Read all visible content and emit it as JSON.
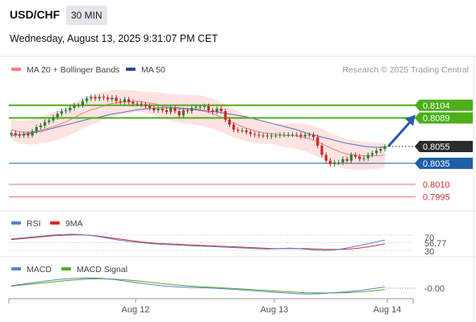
{
  "header": {
    "symbol": "USD/CHF",
    "timeframe": "30 MIN",
    "datetime": "Wednesday, August 13, 2025 9:31:07 PM CET"
  },
  "legend": {
    "ma20_bb": "MA 20 + Bollinger Bands",
    "ma50": "MA 50",
    "credit": "Research © 2025 Trading Central"
  },
  "colors": {
    "bullish": "#2e7d32",
    "bearish": "#c62828",
    "bollinger_fill": "#fde3e1",
    "ma20": "#f08080",
    "ma50": "#5b6fc4",
    "resistance": "#4caf1a",
    "pivot": "#1d5fa8",
    "support": "#e57373",
    "arrow": "#2a5aa8",
    "current_tag": "#2b2b2b"
  },
  "chart_data": {
    "type": "candlestick",
    "symbol": "USD/CHF",
    "timeframe": "30 MIN",
    "x_tick_labels": [
      "Aug 12",
      "Aug 13",
      "Aug 14"
    ],
    "price": {
      "closes": [
        0.8071,
        0.8069,
        0.8068,
        0.807,
        0.8068,
        0.8073,
        0.8078,
        0.808,
        0.8084,
        0.8086,
        0.809,
        0.8094,
        0.8097,
        0.8098,
        0.8101,
        0.8104,
        0.8104,
        0.8109,
        0.8112,
        0.8114,
        0.8112,
        0.8114,
        0.8113,
        0.8111,
        0.8113,
        0.8109,
        0.8108,
        0.8111,
        0.8108,
        0.8106,
        0.8106,
        0.8105,
        0.8103,
        0.8101,
        0.8098,
        0.81,
        0.8098,
        0.8096,
        0.8101,
        0.8097,
        0.8092,
        0.8098,
        0.8097,
        0.8101,
        0.8102,
        0.8102,
        0.8103,
        0.8098,
        0.8096,
        0.81,
        0.8097,
        0.8087,
        0.8081,
        0.8075,
        0.8074,
        0.8074,
        0.8072,
        0.807,
        0.8069,
        0.8068,
        0.8068,
        0.8067,
        0.8068,
        0.8068,
        0.8069,
        0.8069,
        0.8069,
        0.8069,
        0.8069,
        0.8067,
        0.8069,
        0.8069,
        0.8066,
        0.8056,
        0.8045,
        0.8038,
        0.8034,
        0.8036,
        0.8036,
        0.804,
        0.8038,
        0.8045,
        0.8043,
        0.804,
        0.8041,
        0.8045,
        0.8047,
        0.805,
        0.8052,
        0.8055
      ],
      "ma20": [
        0.8075,
        0.8073,
        0.8072,
        0.8072,
        0.8073,
        0.8075,
        0.8077,
        0.8079,
        0.8082,
        0.8085,
        0.8089,
        0.8093,
        0.8096,
        0.8099,
        0.8101,
        0.8104,
        0.8106,
        0.8107,
        0.8108,
        0.8108,
        0.8109,
        0.8108,
        0.8107,
        0.8106,
        0.8104,
        0.8102,
        0.8101,
        0.81,
        0.8099,
        0.8099,
        0.8098,
        0.8097,
        0.8095,
        0.8092,
        0.8089,
        0.8085,
        0.8082,
        0.8079,
        0.8076,
        0.8074,
        0.8072,
        0.8071,
        0.807,
        0.8069,
        0.8068,
        0.8068,
        0.8067,
        0.8066,
        0.8064,
        0.8061,
        0.8058,
        0.8054,
        0.8051,
        0.8048,
        0.8046,
        0.8045,
        0.8044,
        0.8044,
        0.8044,
        0.8044,
        0.8045
      ],
      "ma50": [
        0.8068,
        0.8069,
        0.8071,
        0.8073,
        0.8076,
        0.8079,
        0.8082,
        0.8085,
        0.8088,
        0.809,
        0.8093,
        0.8095,
        0.8097,
        0.8099,
        0.81,
        0.8101,
        0.8101,
        0.8101,
        0.81,
        0.8099,
        0.8097,
        0.8096,
        0.8094,
        0.8092,
        0.809,
        0.8087,
        0.8084,
        0.8081,
        0.8078,
        0.8075,
        0.8071,
        0.8068,
        0.8065,
        0.8062,
        0.8059,
        0.8057,
        0.8055,
        0.8054,
        0.8054
      ],
      "y_range": [
        0.7986,
        0.8122
      ]
    },
    "levels": [
      {
        "value": 0.8104,
        "label": "0.8104",
        "kind": "resistance"
      },
      {
        "value": 0.8089,
        "label": "0.8089",
        "kind": "resistance"
      },
      {
        "value": 0.8055,
        "label": "0.8055",
        "kind": "current"
      },
      {
        "value": 0.8035,
        "label": "0.8035",
        "kind": "pivot"
      },
      {
        "value": 0.801,
        "label": "0.8010",
        "kind": "support"
      },
      {
        "value": 0.7995,
        "label": "0.7995",
        "kind": "support"
      }
    ],
    "forecast_arrow": {
      "from": 0.8055,
      "to": 0.8089,
      "direction": "up"
    },
    "rsi": {
      "legend": [
        "RSI",
        "9MA"
      ],
      "levels": [
        "70",
        "30"
      ],
      "current_label": "56.77",
      "y_range": [
        20,
        80
      ],
      "values": [
        60,
        62,
        64,
        66,
        68,
        70,
        71,
        72,
        71,
        69,
        66,
        62,
        58,
        55,
        52,
        50,
        48,
        46,
        45,
        44,
        43,
        42,
        41,
        40,
        39,
        38,
        37,
        36,
        35,
        34,
        34,
        35,
        36,
        35,
        33,
        31,
        30,
        31,
        34,
        38,
        42,
        47,
        52,
        56.77
      ],
      "ma9": [
        58,
        60,
        62,
        64,
        66,
        68,
        69,
        70,
        70,
        69,
        67,
        64,
        61,
        58,
        55,
        52,
        50,
        48,
        47,
        46,
        45,
        44,
        43,
        42,
        41,
        40,
        39,
        38,
        37,
        36,
        35,
        35,
        35,
        35,
        35,
        34,
        33,
        33,
        33,
        34,
        36,
        39,
        43,
        47
      ]
    },
    "macd": {
      "legend": [
        "MACD",
        "MACD Signal"
      ],
      "current_label": "-0.00",
      "y_range": [
        -1.2,
        1.2
      ],
      "macd": [
        0.1,
        0.3,
        0.5,
        0.7,
        0.85,
        0.95,
        1.0,
        0.95,
        0.8,
        0.6,
        0.4,
        0.2,
        0.05,
        -0.05,
        -0.1,
        -0.15,
        -0.2,
        -0.3,
        -0.4,
        -0.5,
        -0.6,
        -0.7,
        -0.8,
        -0.85,
        -0.8,
        -0.7,
        -0.6,
        -0.45,
        -0.25,
        -0.05
      ],
      "signal": [
        0.05,
        0.2,
        0.35,
        0.5,
        0.65,
        0.78,
        0.87,
        0.9,
        0.86,
        0.76,
        0.62,
        0.46,
        0.3,
        0.16,
        0.05,
        -0.04,
        -0.11,
        -0.19,
        -0.28,
        -0.37,
        -0.46,
        -0.55,
        -0.64,
        -0.71,
        -0.74,
        -0.73,
        -0.7,
        -0.62,
        -0.5,
        -0.35
      ]
    }
  }
}
